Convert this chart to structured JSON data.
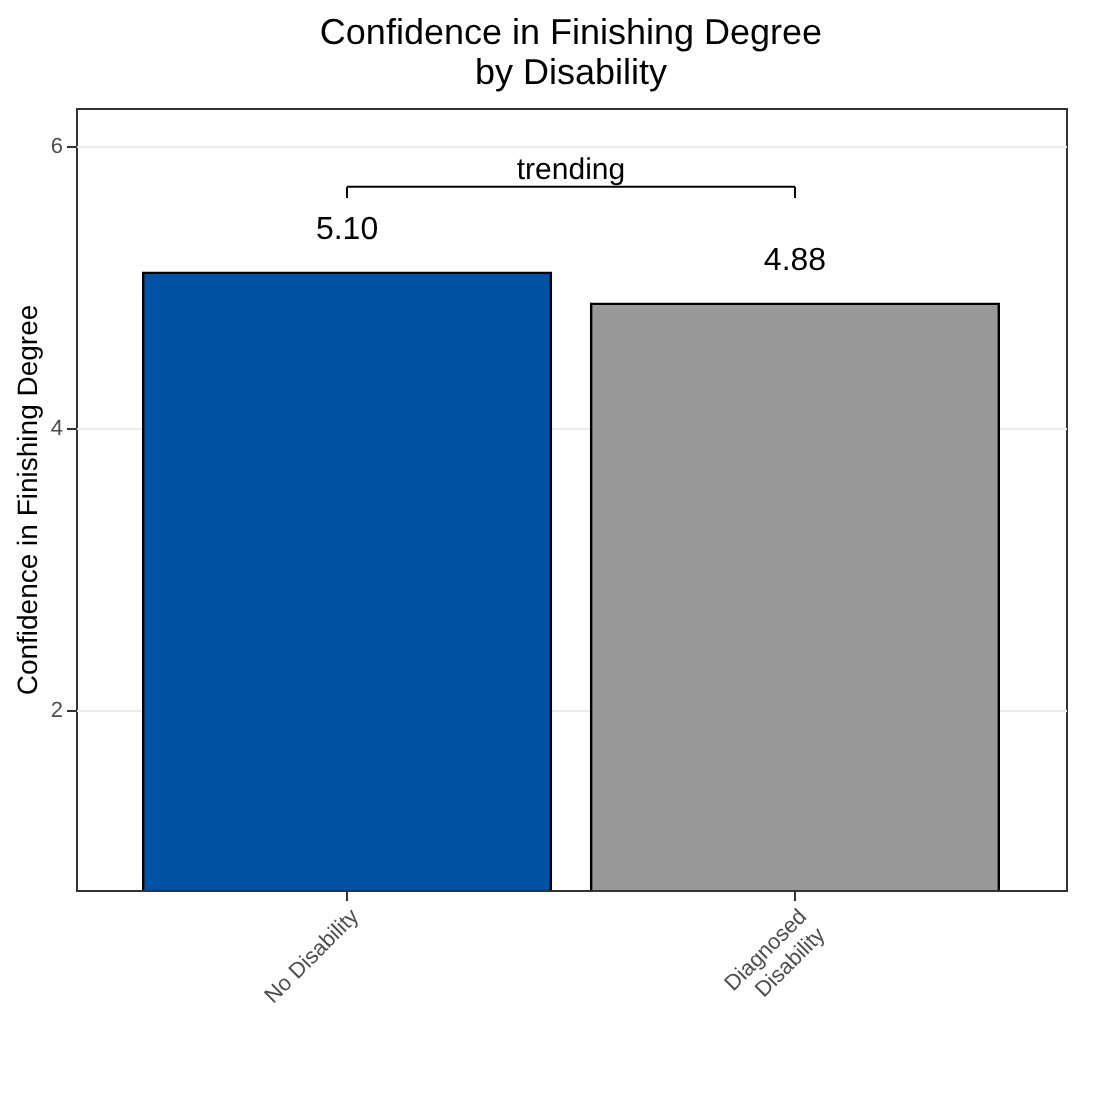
{
  "chart_data": {
    "type": "bar",
    "title": "Confidence in Finishing Degree\nby Disability",
    "ylabel": "Confidence in Finishing Degree",
    "categories": [
      "No Disability",
      "Diagnosed\nDisability"
    ],
    "values": [
      5.1,
      4.88
    ],
    "colors": [
      "#0052a5",
      "#999999"
    ],
    "value_labels": [
      "5.10",
      "4.88"
    ],
    "ylim": [
      0.72,
      6.27
    ],
    "yticks": [
      2,
      4,
      6
    ],
    "grid": true,
    "annotations": [
      "trending"
    ]
  }
}
